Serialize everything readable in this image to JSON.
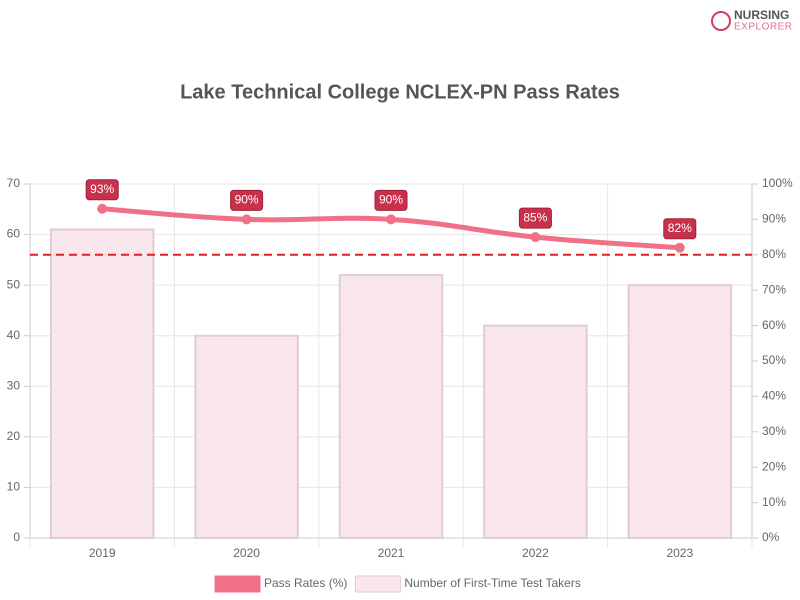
{
  "logo": {
    "line1": "NURSING",
    "line2": "EXPLORER"
  },
  "chart_data": {
    "type": "combo",
    "title": "Lake Technical College NCLEX-PN Pass Rates",
    "categories": [
      "2019",
      "2020",
      "2021",
      "2022",
      "2023"
    ],
    "series": [
      {
        "name": "Pass Rates (%)",
        "type": "line",
        "axis": "y2",
        "color": "#f07088",
        "values": [
          93,
          90,
          90,
          85,
          82
        ],
        "value_labels": [
          "93%",
          "90%",
          "90%",
          "85%",
          "82%"
        ]
      },
      {
        "name": "Number of First-Time Test Takers",
        "type": "bar",
        "axis": "y",
        "color": "#f8e6ec",
        "values": [
          61,
          40,
          52,
          42,
          50
        ]
      }
    ],
    "ylim": [
      0,
      70
    ],
    "yticks": [
      0,
      10,
      20,
      30,
      40,
      50,
      60,
      70
    ],
    "y2lim": [
      0,
      100
    ],
    "y2ticks": [
      {
        "value": 0,
        "label": "0%"
      },
      {
        "value": 10,
        "label": "10%"
      },
      {
        "value": 20,
        "label": "20%"
      },
      {
        "value": 30,
        "label": "30%"
      },
      {
        "value": 40,
        "label": "40%"
      },
      {
        "value": 50,
        "label": "50%"
      },
      {
        "value": 60,
        "label": "60%"
      },
      {
        "value": 70,
        "label": "70%"
      },
      {
        "value": 80,
        "label": "80%"
      },
      {
        "value": 90,
        "label": "90%"
      },
      {
        "value": 100,
        "label": "100%"
      }
    ],
    "reference_line": {
      "value": 80,
      "axis": "y2",
      "color": "#e02020"
    },
    "grid": true,
    "legend": "bottom"
  }
}
